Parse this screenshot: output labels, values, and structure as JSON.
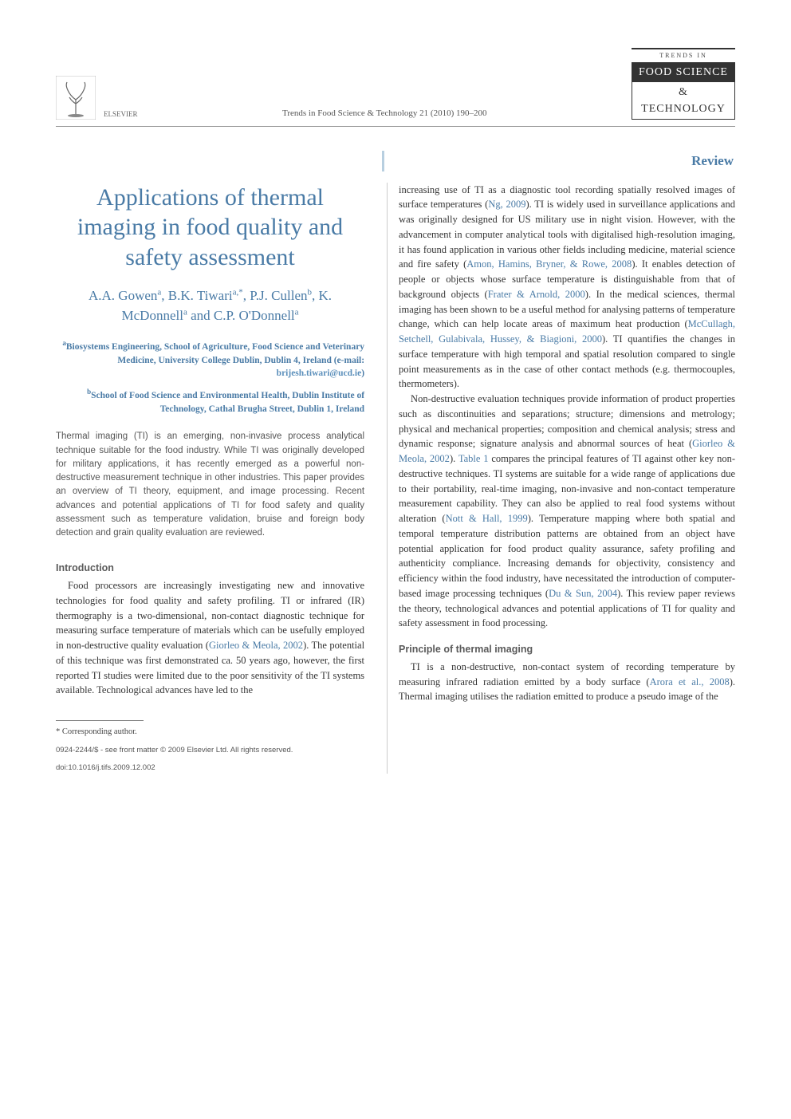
{
  "header": {
    "publisher_name": "ELSEVIER",
    "journal_ref": "Trends in Food Science & Technology 21 (2010) 190–200",
    "journal_logo": {
      "line1": "TRENDS IN",
      "line2": "FOOD SCIENCE",
      "line3": "& TECHNOLOGY"
    }
  },
  "article_type": "Review",
  "title": "Applications of thermal imaging in food quality and safety assessment",
  "authors_html": "A.A. Gowen<sup>a</sup>, B.K. Tiwari<sup>a,*</sup>, P.J. Cullen<sup>b</sup>, K. McDonnell<sup>a</sup> and C.P. O'Donnell<sup>a</sup>",
  "affiliations": {
    "a": "Biosystems Engineering, School of Agriculture, Food Science and Veterinary Medicine, University College Dublin, Dublin 4, Ireland (e-mail: ",
    "a_email": "brijesh.tiwari@ucd.ie",
    "a_close": ")",
    "b": "School of Food Science and Environmental Health, Dublin Institute of Technology, Cathal Brugha Street, Dublin 1, Ireland"
  },
  "abstract": "Thermal imaging (TI) is an emerging, non-invasive process analytical technique suitable for the food industry. While TI was originally developed for military applications, it has recently emerged as a powerful non-destructive measurement technique in other industries. This paper provides an overview of TI theory, equipment, and image processing. Recent advances and potential applications of TI for food safety and quality assessment such as temperature validation, bruise and foreign body detection and grain quality evaluation are reviewed.",
  "sections": {
    "intro_head": "Introduction",
    "intro_p1_a": "Food processors are increasingly investigating new and innovative technologies for food quality and safety profiling. TI or infrared (IR) thermography is a two-dimensional, non-contact diagnostic technique for measuring surface temperature of materials which can be usefully employed in non-destructive quality evaluation (",
    "intro_p1_cite1": "Giorleo & Meola, 2002",
    "intro_p1_b": "). The potential of this technique was first demonstrated ca. 50 years ago, however, the first reported TI studies were limited due to the poor sensitivity of the TI systems available. Technological advances have led to the",
    "right_p1_a": "increasing use of TI as a diagnostic tool recording spatially resolved images of surface temperatures (",
    "right_p1_cite1": "Ng, 2009",
    "right_p1_b": "). TI is widely used in surveillance applications and was originally designed for US military use in night vision. However, with the advancement in computer analytical tools with digitalised high-resolution imaging, it has found application in various other fields including medicine, material science and fire safety (",
    "right_p1_cite2": "Amon, Hamins, Bryner, & Rowe, 2008",
    "right_p1_c": "). It enables detection of people or objects whose surface temperature is distinguishable from that of background objects (",
    "right_p1_cite3": "Frater & Arnold, 2000",
    "right_p1_d": "). In the medical sciences, thermal imaging has been shown to be a useful method for analysing patterns of temperature change, which can help locate areas of maximum heat production (",
    "right_p1_cite4": "McCullagh, Setchell, Gulabivala, Hussey, & Biagioni, 2000",
    "right_p1_e": "). TI quantifies the changes in surface temperature with high temporal and spatial resolution compared to single point measurements as in the case of other contact methods (e.g. thermocouples, thermometers).",
    "right_p2_a": "Non-destructive evaluation techniques provide information of product properties such as discontinuities and separations; structure; dimensions and metrology; physical and mechanical properties; composition and chemical analysis; stress and dynamic response; signature analysis and abnormal sources of heat (",
    "right_p2_cite1": "Giorleo & Meola, 2002",
    "right_p2_b": "). ",
    "right_p2_cite2": "Table 1",
    "right_p2_c": " compares the principal features of TI against other key non-destructive techniques. TI systems are suitable for a wide range of applications due to their portability, real-time imaging, non-invasive and non-contact temperature measurement capability. They can also be applied to real food systems without alteration (",
    "right_p2_cite3": "Nott & Hall, 1999",
    "right_p2_d": "). Temperature mapping where both spatial and temporal temperature distribution patterns are obtained from an object have potential application for food product quality assurance, safety profiling and authenticity compliance. Increasing demands for objectivity, consistency and efficiency within the food industry, have necessitated the introduction of computer-based image processing techniques (",
    "right_p2_cite4": "Du & Sun, 2004",
    "right_p2_e": "). This review paper reviews the theory, technological advances and potential applications of TI for quality and safety assessment in food processing.",
    "principle_head": "Principle of thermal imaging",
    "principle_p1_a": "TI is a non-destructive, non-contact system of recording temperature by measuring infrared radiation emitted by a body surface (",
    "principle_p1_cite1": "Arora et al., 2008",
    "principle_p1_b": "). Thermal imaging utilises the radiation emitted to produce a pseudo image of the"
  },
  "footnote": {
    "corr": "* Corresponding author.",
    "copyright": "0924-2244/$ - see front matter © 2009 Elsevier Ltd. All rights reserved.",
    "doi": "doi:10.1016/j.tifs.2009.12.002"
  },
  "colors": {
    "link": "#4a7ba6",
    "heading": "#5a5a5a",
    "text": "#333333",
    "rule": "#b8cfe0"
  }
}
